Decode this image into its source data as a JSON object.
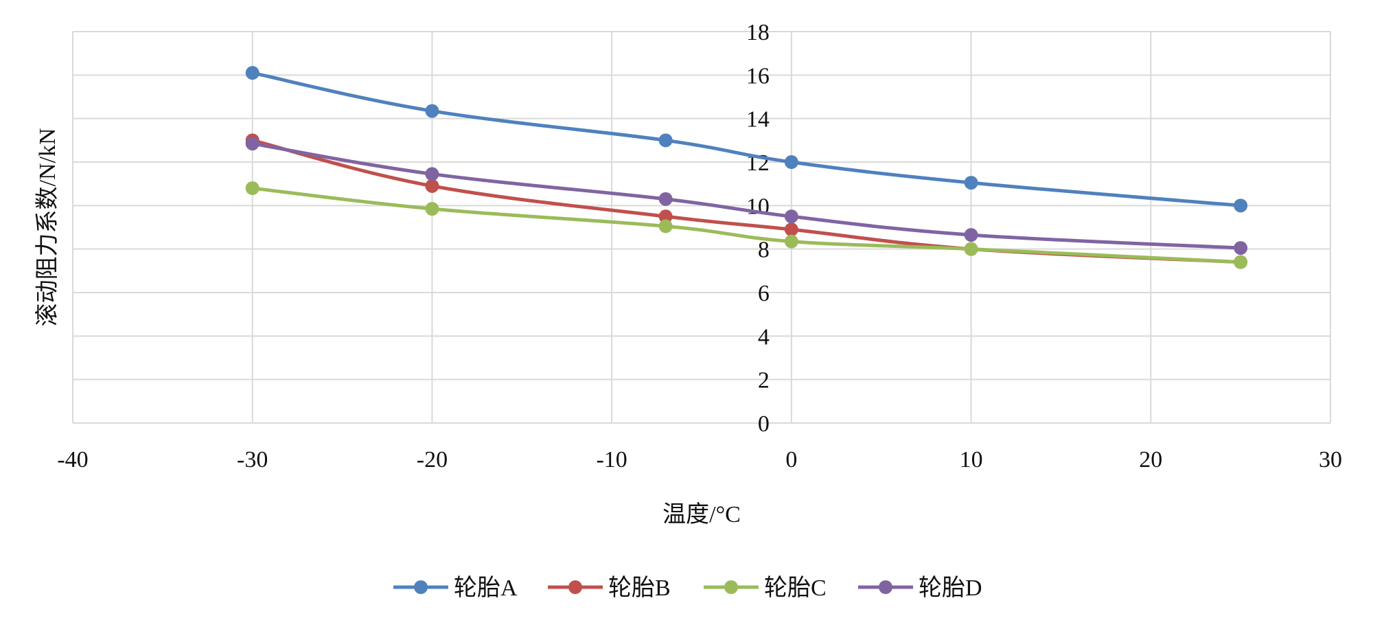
{
  "chart_data": {
    "type": "line",
    "title": "",
    "xlabel": "温度/°C",
    "ylabel": "滚动阻力系数/N/kN",
    "xlim": [
      -40,
      30
    ],
    "ylim": [
      0,
      18
    ],
    "x_ticks": [
      -40,
      -30,
      -20,
      -10,
      0,
      10,
      20,
      30
    ],
    "y_ticks": [
      0,
      2,
      4,
      6,
      8,
      10,
      12,
      14,
      16,
      18
    ],
    "grid": true,
    "legend_position": "bottom",
    "series": [
      {
        "name": "轮胎A",
        "color": "#4f81bd",
        "x": [
          -30,
          -20,
          -7,
          0,
          10,
          25
        ],
        "y": [
          16.1,
          14.35,
          13.0,
          12.0,
          11.05,
          10.0
        ]
      },
      {
        "name": "轮胎B",
        "color": "#c0504d",
        "x": [
          -30,
          -20,
          -7,
          0,
          10,
          25
        ],
        "y": [
          13.0,
          10.9,
          9.5,
          8.9,
          8.0,
          7.4
        ]
      },
      {
        "name": "轮胎C",
        "color": "#9bbb59",
        "x": [
          -30,
          -20,
          -7,
          0,
          10,
          25
        ],
        "y": [
          10.8,
          9.85,
          9.05,
          8.35,
          8.0,
          7.4
        ]
      },
      {
        "name": "轮胎D",
        "color": "#8064a2",
        "x": [
          -30,
          -20,
          -7,
          0,
          10,
          25
        ],
        "y": [
          12.85,
          11.45,
          10.3,
          9.5,
          8.65,
          8.05
        ]
      }
    ]
  }
}
